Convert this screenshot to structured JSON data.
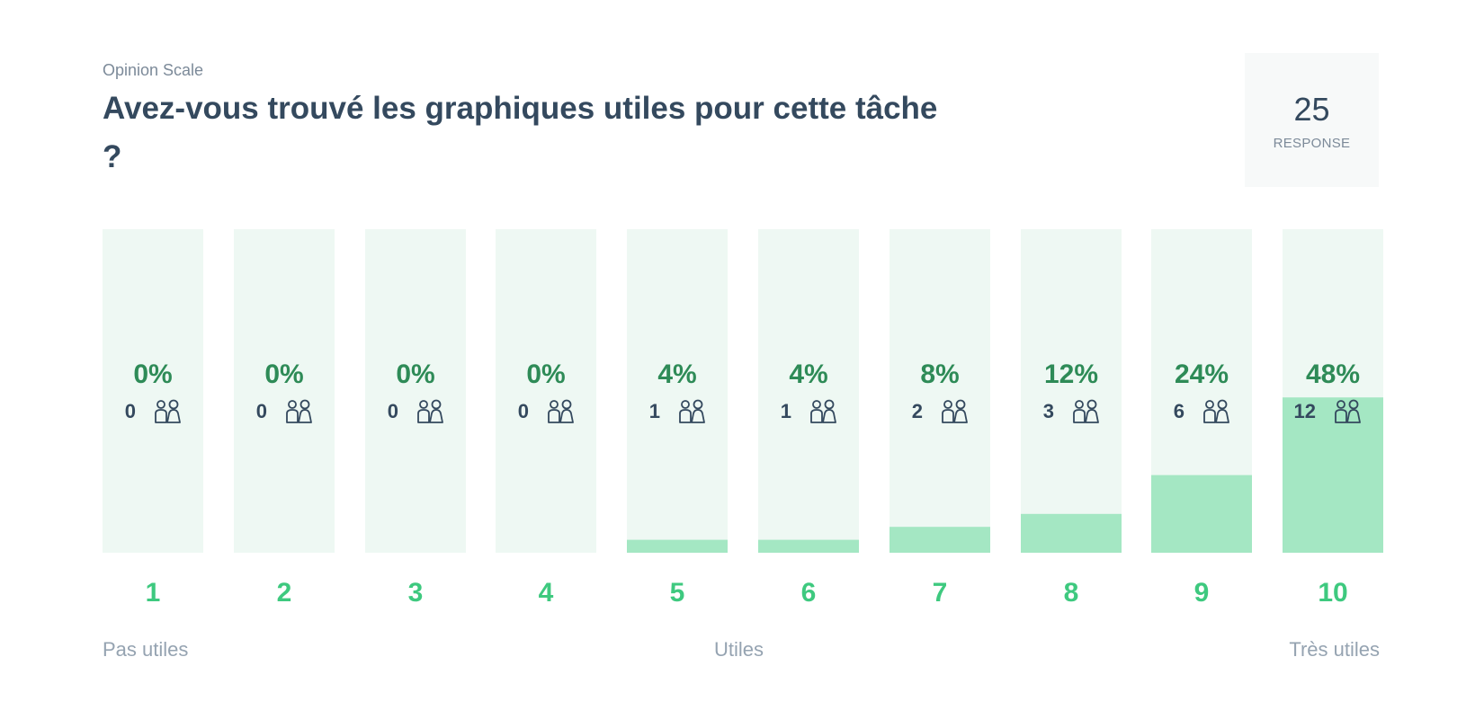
{
  "header": {
    "kind_label": "Opinion Scale",
    "question": "Avez-vous trouvé les graphiques utiles pour cette tâche ?"
  },
  "responses": {
    "count": "25",
    "label": "RESPONSE"
  },
  "scale": {
    "low_label": "Pas utiles",
    "mid_label": "Utiles",
    "high_label": "Très utiles"
  },
  "colors": {
    "bar_background": "#eef8f3",
    "bar_fill": "#a4e7c3",
    "percent_text": "#2e8b57",
    "scale_number": "#3ec97f",
    "count_text": "#34495e"
  },
  "icons": {
    "respondents": "people-icon"
  },
  "chart_data": {
    "type": "bar",
    "categories": [
      "1",
      "2",
      "3",
      "4",
      "5",
      "6",
      "7",
      "8",
      "9",
      "10"
    ],
    "values": [
      0,
      0,
      0,
      0,
      4,
      4,
      8,
      12,
      24,
      48
    ],
    "percent_labels": [
      "0%",
      "0%",
      "0%",
      "0%",
      "4%",
      "4%",
      "8%",
      "12%",
      "24%",
      "48%"
    ],
    "counts": [
      0,
      0,
      0,
      0,
      1,
      1,
      2,
      3,
      6,
      12
    ],
    "ylim": [
      0,
      100
    ],
    "grid": false,
    "legend": "none"
  }
}
